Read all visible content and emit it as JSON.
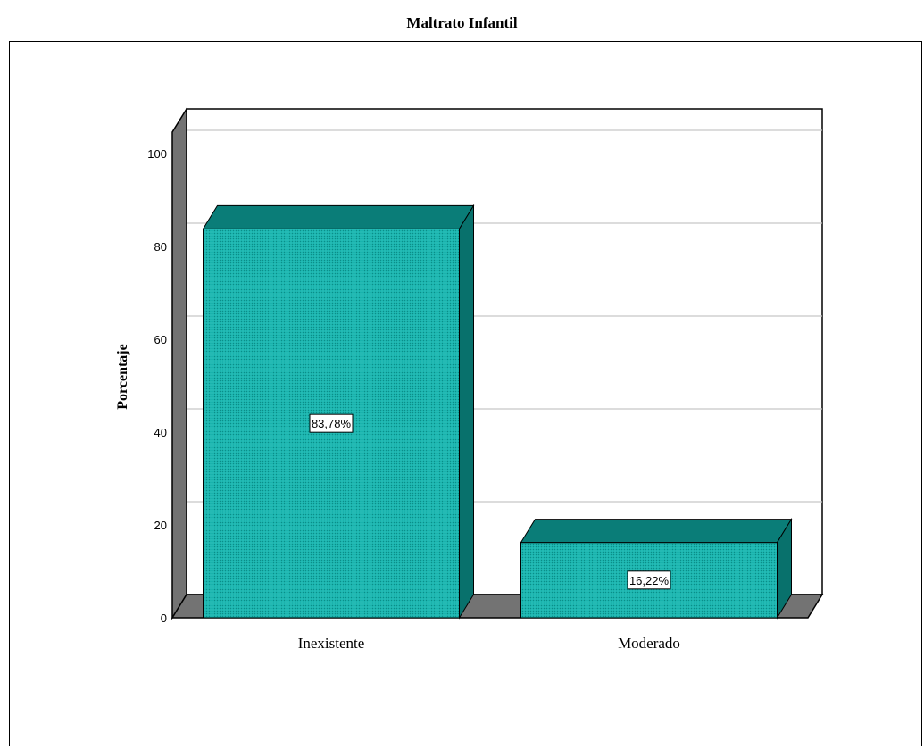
{
  "page": {
    "title": "Maltrato Infantil"
  },
  "chart_data": {
    "type": "bar",
    "title": "Maltrato Infantil",
    "xlabel": "",
    "ylabel": "Porcentaje",
    "categories": [
      "Inexistente",
      "Moderado"
    ],
    "values": [
      83.78,
      16.22
    ],
    "data_labels": [
      "83,78%",
      "16,22%"
    ],
    "ylim": [
      0,
      100
    ],
    "yticks": [
      0,
      20,
      40,
      60,
      80,
      100
    ],
    "grid": true,
    "style": "3d",
    "colors": {
      "bar_front": "#1ab6b0",
      "bar_top": "#0a7d78",
      "bar_side": "#08716c",
      "floor": "#737373",
      "wall": "#ffffff"
    }
  }
}
